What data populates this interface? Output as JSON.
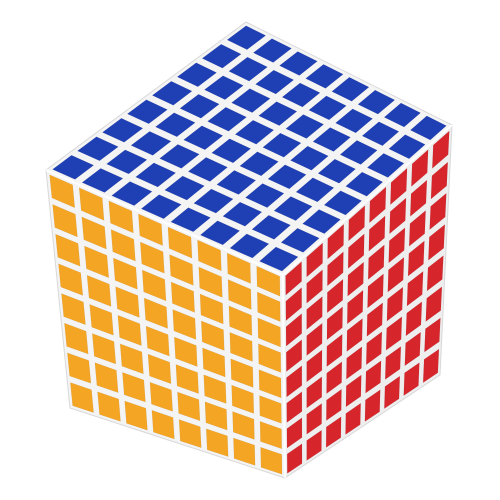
{
  "image": {
    "subject": "8x8 twisty cube",
    "grid_size": 8,
    "faces": [
      {
        "name": "top",
        "sticker_color": "#1f3fb5"
      },
      {
        "name": "left",
        "sticker_color": "#f5a524"
      },
      {
        "name": "right",
        "sticker_color": "#d6262c"
      }
    ],
    "body_color": "#f4f4f4",
    "background": "#ffffff"
  }
}
